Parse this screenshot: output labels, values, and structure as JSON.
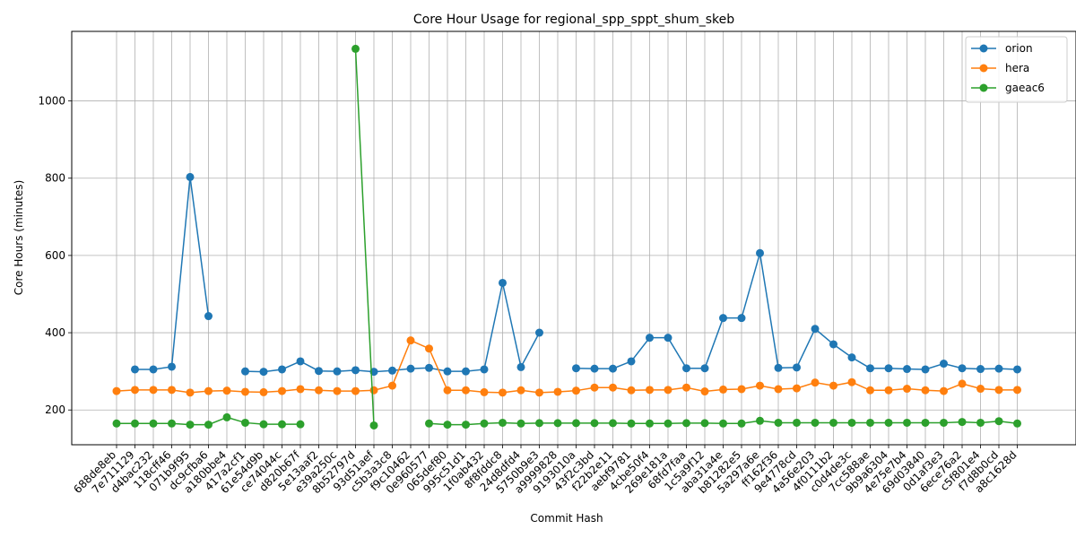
{
  "chart_data": {
    "type": "line",
    "title": "Core Hour Usage for regional_spp_sppt_shum_skeb",
    "xlabel": "Commit Hash",
    "ylabel": "Core Hours (minutes)",
    "ylim": [
      110,
      1180
    ],
    "yticks": [
      200,
      400,
      600,
      800,
      1000
    ],
    "grid": true,
    "legend_position": "upper right",
    "categories": [
      "688de8eb",
      "7e711129",
      "d4bac232",
      "118cff46",
      "071b9f95",
      "dc9cfba6",
      "a180bbe4",
      "417a2cf1",
      "61e54d9b",
      "ce74044c",
      "d820b67f",
      "5e13aaf2",
      "e39a250c",
      "8b52797d",
      "93d51aef",
      "c5b3a3c8",
      "f9c10462",
      "0e960577",
      "065def80",
      "995c51d1",
      "1f0ab432",
      "8f8fddc8",
      "24d8dfd4",
      "5750b9e3",
      "a9999828",
      "9193010a",
      "43f2c3bd",
      "f22b2e11",
      "aebf9781",
      "4cbe50f4",
      "269e181a",
      "68fd7faa",
      "1c5a9f12",
      "aba31a4e",
      "b81282e5",
      "5a297a6e",
      "ff162f36",
      "9e4778cd",
      "4a56e203",
      "4f0111b2",
      "c0d4de3c",
      "7cc588ae",
      "9b9a6304",
      "4e75e7b4",
      "69d03840",
      "0d1af3e3",
      "6ece76a2",
      "c5f801e4",
      "f7d8b0cd",
      "a8c1628d"
    ],
    "series": [
      {
        "name": "orion",
        "color": "#1f77b4",
        "values": [
          null,
          305,
          305,
          312,
          803,
          443,
          null,
          300,
          299,
          305,
          326,
          301,
          300,
          303,
          299,
          302,
          307,
          309,
          300,
          300,
          305,
          529,
          311,
          400,
          null,
          308,
          307,
          307,
          326,
          387,
          387,
          308,
          308,
          438,
          438,
          606,
          309,
          310,
          410,
          370,
          336,
          308,
          308,
          306,
          305,
          320,
          308,
          306,
          307,
          305
        ]
      },
      {
        "name": "hera",
        "color": "#ff7f0e",
        "values": [
          249,
          252,
          252,
          252,
          245,
          249,
          250,
          247,
          246,
          249,
          254,
          251,
          249,
          249,
          251,
          263,
          380,
          359,
          251,
          251,
          246,
          245,
          251,
          245,
          247,
          250,
          258,
          258,
          251,
          252,
          252,
          258,
          248,
          253,
          254,
          263,
          254,
          256,
          271,
          263,
          272,
          251,
          251,
          255,
          251,
          249,
          268,
          255,
          252,
          252
        ]
      },
      {
        "name": "gaeac6",
        "color": "#2ca02c",
        "values": [
          165,
          165,
          165,
          165,
          162,
          162,
          181,
          167,
          163,
          163,
          163,
          null,
          null,
          1135,
          160,
          null,
          null,
          165,
          162,
          162,
          165,
          167,
          165,
          166,
          166,
          166,
          166,
          166,
          165,
          165,
          165,
          166,
          166,
          165,
          165,
          172,
          167,
          167,
          167,
          167,
          167,
          167,
          167,
          167,
          167,
          167,
          169,
          167,
          171,
          165
        ]
      }
    ]
  }
}
